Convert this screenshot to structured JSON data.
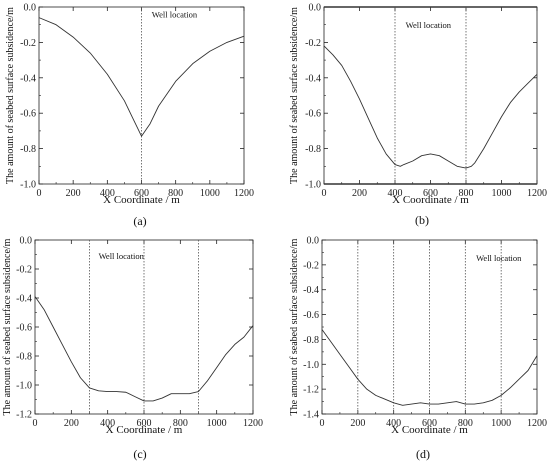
{
  "chart_data": [
    {
      "type": "line",
      "panel_label": "(a)",
      "xlabel": "X Coordinate / m",
      "ylabel": "The amount of seabed surface subsidence/m",
      "xlim": [
        0,
        1200
      ],
      "ylim": [
        -1.0,
        0.0
      ],
      "xticks": [
        "0",
        "200",
        "400",
        "600",
        "800",
        "1000",
        "1200"
      ],
      "yticks": [
        "0.0",
        "-0.2",
        "-0.4",
        "-0.6",
        "-0.8",
        "-1.0"
      ],
      "annotation": "Well location",
      "annotation_pos": [
        660,
        -0.06
      ],
      "vlines": [
        600
      ],
      "hlines": [],
      "series": [
        {
          "x": [
            0,
            100,
            200,
            300,
            400,
            500,
            550,
            600,
            650,
            700,
            800,
            900,
            1000,
            1100,
            1200
          ],
          "y": [
            -0.06,
            -0.1,
            -0.17,
            -0.26,
            -0.38,
            -0.53,
            -0.63,
            -0.73,
            -0.66,
            -0.56,
            -0.42,
            -0.32,
            -0.25,
            -0.2,
            -0.165
          ]
        }
      ]
    },
    {
      "type": "line",
      "panel_label": "(b)",
      "xlabel": "X Coordinate / m",
      "ylabel": "The amount of seabed surface subsidence/m",
      "xlim": [
        0,
        1200
      ],
      "ylim": [
        -1.0,
        0.0
      ],
      "xticks": [
        "0",
        "200",
        "400",
        "600",
        "800",
        "1000",
        "1200"
      ],
      "yticks": [
        "0.0",
        "-0.2",
        "-0.4",
        "-0.6",
        "-0.8",
        "-1.0"
      ],
      "annotation": "Well location",
      "annotation_pos": [
        460,
        -0.12
      ],
      "vlines": [
        400,
        800
      ],
      "hlines": [
        0.0,
        -1.0
      ],
      "series": [
        {
          "x": [
            0,
            50,
            100,
            150,
            200,
            250,
            300,
            350,
            400,
            430,
            450,
            500,
            550,
            600,
            650,
            700,
            750,
            800,
            830,
            850,
            900,
            950,
            1000,
            1050,
            1100,
            1150,
            1200
          ],
          "y": [
            -0.22,
            -0.27,
            -0.33,
            -0.42,
            -0.52,
            -0.63,
            -0.74,
            -0.83,
            -0.89,
            -0.9,
            -0.89,
            -0.87,
            -0.84,
            -0.83,
            -0.84,
            -0.87,
            -0.9,
            -0.91,
            -0.9,
            -0.88,
            -0.8,
            -0.71,
            -0.62,
            -0.54,
            -0.48,
            -0.43,
            -0.38
          ]
        }
      ]
    },
    {
      "type": "line",
      "panel_label": "(c)",
      "xlabel": "X Coordinate / m",
      "ylabel": "The amount of seabed surface subsidence/m",
      "xlim": [
        0,
        1200
      ],
      "ylim": [
        -1.2,
        0.0
      ],
      "xticks": [
        "0",
        "200",
        "400",
        "600",
        "800",
        "1000",
        "1200"
      ],
      "yticks": [
        "0.0",
        "-0.2",
        "-0.4",
        "-0.6",
        "-0.8",
        "-1.0",
        "-1.2"
      ],
      "annotation": "Well location",
      "annotation_pos": [
        350,
        -0.13
      ],
      "vlines": [
        300,
        600,
        900
      ],
      "hlines": [],
      "series": [
        {
          "x": [
            0,
            50,
            100,
            150,
            200,
            250,
            300,
            350,
            400,
            450,
            500,
            550,
            600,
            650,
            700,
            750,
            800,
            850,
            900,
            950,
            1000,
            1050,
            1100,
            1150,
            1200
          ],
          "y": [
            -0.39,
            -0.48,
            -0.6,
            -0.72,
            -0.84,
            -0.95,
            -1.02,
            -1.04,
            -1.045,
            -1.045,
            -1.05,
            -1.08,
            -1.11,
            -1.11,
            -1.09,
            -1.06,
            -1.06,
            -1.06,
            -1.045,
            -0.97,
            -0.88,
            -0.79,
            -0.72,
            -0.67,
            -0.59
          ]
        }
      ]
    },
    {
      "type": "line",
      "panel_label": "(d)",
      "xlabel": "X Coordinate / m",
      "ylabel": "The amount of seabed surface subsidence/m",
      "xlim": [
        0,
        1200
      ],
      "ylim": [
        -1.4,
        0.0
      ],
      "xticks": [
        "0",
        "200",
        "400",
        "600",
        "800",
        "1000",
        "1200"
      ],
      "yticks": [
        "0.0",
        "-0.2",
        "-0.4",
        "-0.6",
        "-0.8",
        "-1.0",
        "-1.2",
        "-1.4"
      ],
      "annotation": "Well location",
      "annotation_pos": [
        860,
        -0.17
      ],
      "vlines": [
        200,
        400,
        600,
        800,
        1000
      ],
      "hlines": [],
      "series": [
        {
          "x": [
            0,
            50,
            100,
            150,
            200,
            250,
            300,
            350,
            400,
            450,
            500,
            550,
            600,
            650,
            700,
            750,
            800,
            850,
            900,
            950,
            1000,
            1050,
            1100,
            1150,
            1200
          ],
          "y": [
            -0.72,
            -0.82,
            -0.92,
            -1.02,
            -1.12,
            -1.2,
            -1.25,
            -1.28,
            -1.31,
            -1.33,
            -1.32,
            -1.31,
            -1.32,
            -1.32,
            -1.31,
            -1.3,
            -1.32,
            -1.32,
            -1.31,
            -1.29,
            -1.25,
            -1.19,
            -1.12,
            -1.05,
            -0.93
          ]
        }
      ]
    }
  ]
}
